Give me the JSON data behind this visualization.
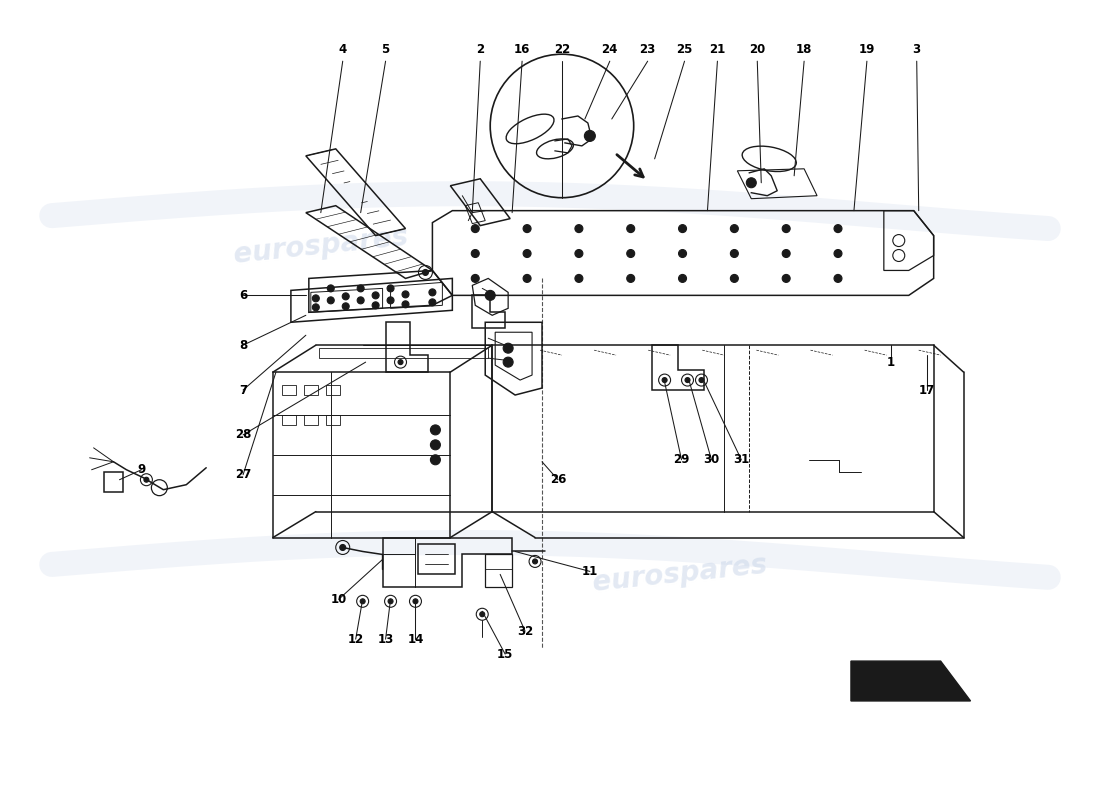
{
  "bg_color": "#ffffff",
  "line_color": "#1a1a1a",
  "label_color": "#000000",
  "watermark_color1": "#c8d4e8",
  "watermark_color2": "#c8d4e8",
  "lw_main": 1.1,
  "lw_thin": 0.7,
  "lw_thick": 1.5,
  "part_labels_top": [
    [
      "4",
      3.42,
      7.52
    ],
    [
      "5",
      3.85,
      7.52
    ],
    [
      "2",
      4.8,
      7.52
    ],
    [
      "16",
      5.22,
      7.52
    ],
    [
      "22",
      5.62,
      7.52
    ],
    [
      "24",
      6.1,
      7.52
    ],
    [
      "23",
      6.48,
      7.52
    ],
    [
      "25",
      6.85,
      7.52
    ],
    [
      "21",
      7.18,
      7.52
    ],
    [
      "20",
      7.58,
      7.52
    ],
    [
      "18",
      8.05,
      7.52
    ],
    [
      "19",
      8.68,
      7.52
    ],
    [
      "3",
      9.18,
      7.52
    ]
  ],
  "part_labels_mid": [
    [
      "6",
      2.42,
      5.05
    ],
    [
      "8",
      2.42,
      4.55
    ],
    [
      "7",
      2.42,
      4.1
    ],
    [
      "28",
      2.42,
      3.65
    ],
    [
      "27",
      2.42,
      3.25
    ],
    [
      "26",
      5.58,
      3.2
    ],
    [
      "1",
      8.92,
      4.38
    ],
    [
      "17",
      9.28,
      4.1
    ],
    [
      "29",
      6.82,
      3.4
    ],
    [
      "30",
      7.12,
      3.4
    ],
    [
      "31",
      7.42,
      3.4
    ]
  ],
  "part_labels_bot": [
    [
      "9",
      1.4,
      3.3
    ],
    [
      "10",
      3.38,
      2.0
    ],
    [
      "11",
      5.9,
      2.28
    ],
    [
      "32",
      5.25,
      1.68
    ],
    [
      "12",
      3.55,
      1.6
    ],
    [
      "13",
      3.85,
      1.6
    ],
    [
      "14",
      4.15,
      1.6
    ],
    [
      "15",
      5.05,
      1.45
    ]
  ]
}
